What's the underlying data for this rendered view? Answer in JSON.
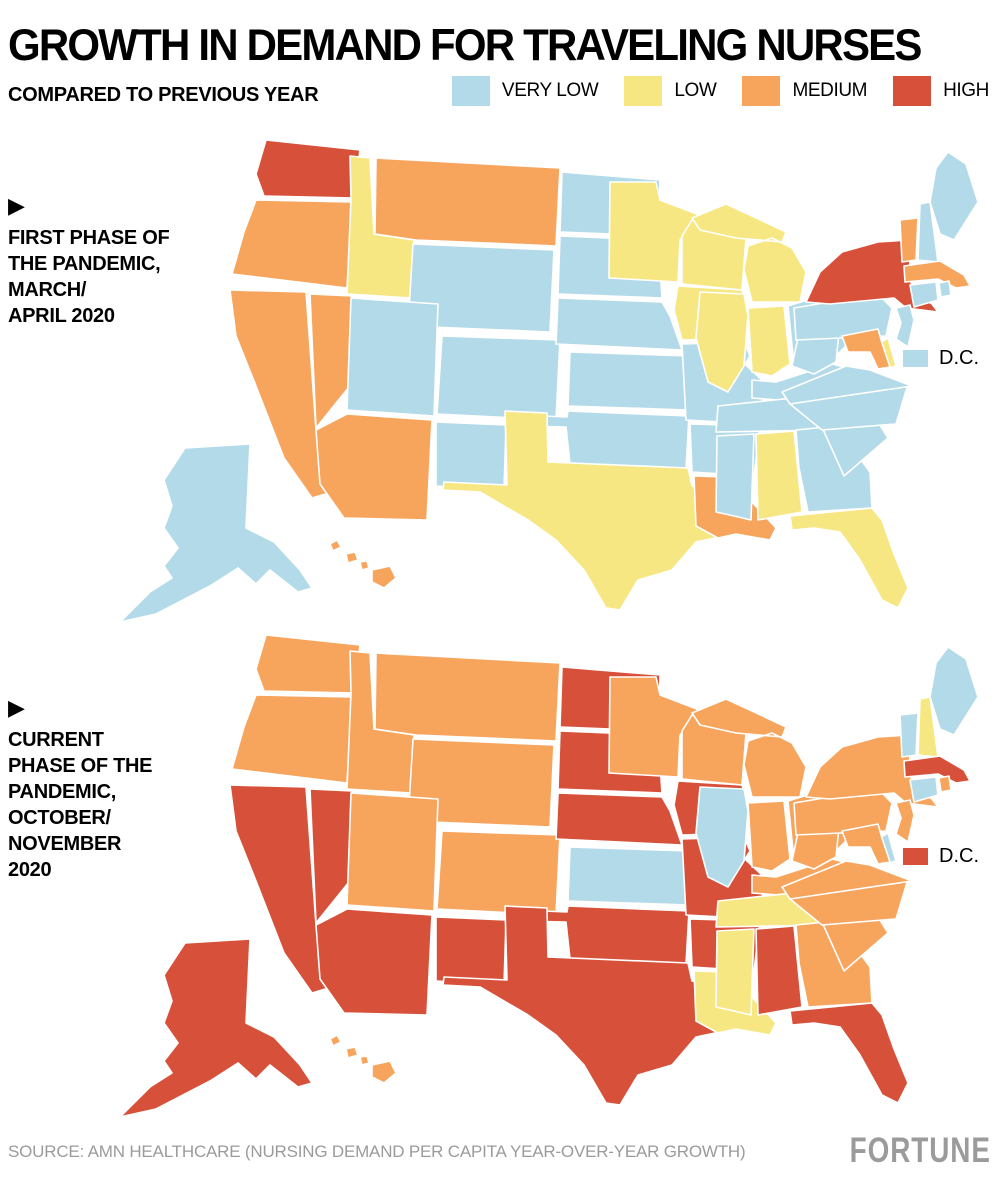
{
  "title": "GROWTH IN DEMAND FOR TRAVELING NURSES",
  "subtitle": "COMPARED TO PREVIOUS YEAR",
  "legend": {
    "items": [
      {
        "label": "VERY LOW",
        "color": "#B3DAE8"
      },
      {
        "label": "LOW",
        "color": "#F7E782"
      },
      {
        "label": "MEDIUM",
        "color": "#F7A45C"
      },
      {
        "label": "HIGH",
        "color": "#D6503A"
      }
    ]
  },
  "maps": [
    {
      "arrow_marker": "▶",
      "label_lines": [
        "FIRST PHASE OF",
        "THE PANDEMIC,",
        "MARCH/",
        "APRIL 2020"
      ],
      "dc_label": "D.C."
    },
    {
      "arrow_marker": "▶",
      "label_lines": [
        "CURRENT",
        "PHASE OF THE",
        "PANDEMIC,",
        "OCTOBER/",
        "NOVEMBER",
        "2020"
      ],
      "dc_label": "D.C."
    }
  ],
  "footer": {
    "source": "SOURCE: AMN HEALTHCARE (NURSING DEMAND PER CAPITA YEAR-OVER-YEAR GROWTH)",
    "brand": "FORTUNE"
  },
  "chart_data": {
    "type": "heatmap",
    "subtype": "us-state-choropleth",
    "title": "GROWTH IN DEMAND FOR TRAVELING NURSES",
    "subtitle": "COMPARED TO PREVIOUS YEAR",
    "legend": [
      "VERY LOW",
      "LOW",
      "MEDIUM",
      "HIGH"
    ],
    "legend_position": "top-right",
    "series": [
      {
        "name": "FIRST PHASE OF THE PANDEMIC, MARCH/APRIL 2020",
        "values": {
          "WA": "HIGH",
          "OR": "MEDIUM",
          "CA": "MEDIUM",
          "NV": "MEDIUM",
          "ID": "LOW",
          "MT": "MEDIUM",
          "WY": "VERY LOW",
          "UT": "VERY LOW",
          "CO": "VERY LOW",
          "AZ": "MEDIUM",
          "NM": "VERY LOW",
          "ND": "VERY LOW",
          "SD": "VERY LOW",
          "NE": "VERY LOW",
          "KS": "VERY LOW",
          "OK": "VERY LOW",
          "TX": "LOW",
          "MN": "LOW",
          "IA": "LOW",
          "MO": "VERY LOW",
          "AR": "VERY LOW",
          "LA": "MEDIUM",
          "WI": "LOW",
          "IL": "LOW",
          "MI": "LOW",
          "IN": "LOW",
          "OH": "VERY LOW",
          "KY": "VERY LOW",
          "TN": "VERY LOW",
          "MS": "VERY LOW",
          "AL": "LOW",
          "GA": "VERY LOW",
          "FL": "LOW",
          "SC": "VERY LOW",
          "NC": "VERY LOW",
          "VA": "VERY LOW",
          "WV": "VERY LOW",
          "PA": "VERY LOW",
          "NY": "HIGH",
          "VT": "MEDIUM",
          "NH": "VERY LOW",
          "ME": "VERY LOW",
          "MA": "MEDIUM",
          "RI": "VERY LOW",
          "CT": "VERY LOW",
          "NJ": "VERY LOW",
          "DE": "LOW",
          "MD": "MEDIUM",
          "DC": "VERY LOW",
          "AK": "VERY LOW",
          "HI": "MEDIUM"
        }
      },
      {
        "name": "CURRENT PHASE OF THE PANDEMIC, OCTOBER/NOVEMBER 2020",
        "values": {
          "WA": "MEDIUM",
          "OR": "MEDIUM",
          "CA": "HIGH",
          "NV": "HIGH",
          "ID": "MEDIUM",
          "MT": "MEDIUM",
          "WY": "MEDIUM",
          "UT": "MEDIUM",
          "CO": "MEDIUM",
          "AZ": "HIGH",
          "NM": "HIGH",
          "ND": "HIGH",
          "SD": "HIGH",
          "NE": "HIGH",
          "KS": "VERY LOW",
          "OK": "HIGH",
          "TX": "HIGH",
          "MN": "MEDIUM",
          "IA": "HIGH",
          "MO": "HIGH",
          "AR": "HIGH",
          "LA": "LOW",
          "WI": "MEDIUM",
          "IL": "VERY LOW",
          "MI": "MEDIUM",
          "IN": "MEDIUM",
          "OH": "MEDIUM",
          "KY": "MEDIUM",
          "TN": "LOW",
          "MS": "LOW",
          "AL": "HIGH",
          "GA": "MEDIUM",
          "FL": "HIGH",
          "SC": "MEDIUM",
          "NC": "MEDIUM",
          "VA": "MEDIUM",
          "WV": "MEDIUM",
          "PA": "MEDIUM",
          "NY": "MEDIUM",
          "VT": "VERY LOW",
          "NH": "LOW",
          "ME": "VERY LOW",
          "MA": "HIGH",
          "RI": "MEDIUM",
          "CT": "VERY LOW",
          "NJ": "MEDIUM",
          "DE": "VERY LOW",
          "MD": "MEDIUM",
          "DC": "HIGH",
          "AK": "HIGH",
          "HI": "MEDIUM"
        }
      }
    ]
  }
}
